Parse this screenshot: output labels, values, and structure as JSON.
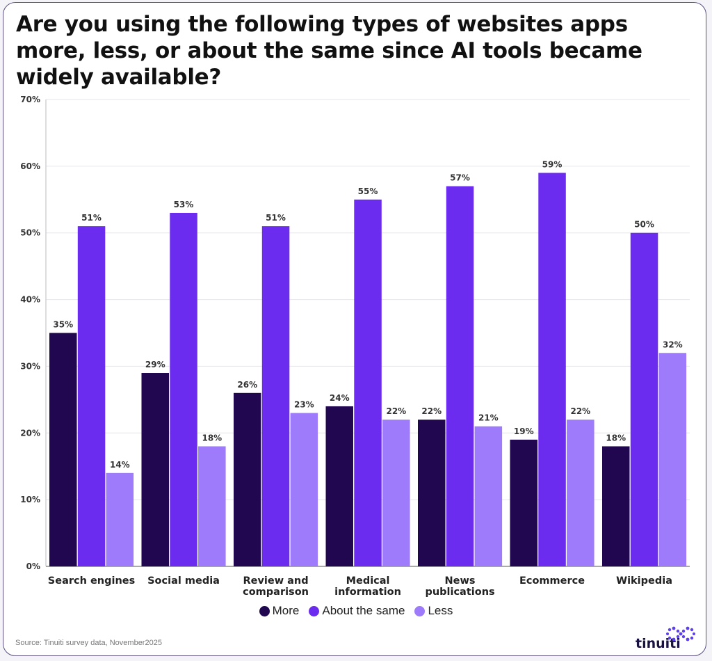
{
  "title": "Are you using the following types of websites apps more, less, or about the same since AI tools became widely available?",
  "source": "Source: Tinuiti survey data, November2025",
  "logo_text": "tinuiti",
  "logo_icon": "dotted-infinity-icon",
  "colors": {
    "More": "#20074f",
    "About the same": "#6c2cf0",
    "Less": "#9d7bfa"
  },
  "legend": [
    {
      "name": "More",
      "color": "#20074f"
    },
    {
      "name": "About the same",
      "color": "#6c2cf0"
    },
    {
      "name": "Less",
      "color": "#9d7bfa"
    }
  ],
  "chart_data": {
    "type": "bar",
    "categories": [
      "Search engines",
      "Social media",
      "Review and comparison",
      "Medical information",
      "News publications",
      "Ecommerce",
      "Wikipedia"
    ],
    "category_lines": [
      [
        "Search engines"
      ],
      [
        "Social media"
      ],
      [
        "Review and",
        "comparison"
      ],
      [
        "Medical",
        "information"
      ],
      [
        "News",
        "publications"
      ],
      [
        "Ecommerce"
      ],
      [
        "Wikipedia"
      ]
    ],
    "series": [
      {
        "name": "More",
        "values": [
          35,
          29,
          26,
          24,
          22,
          19,
          18
        ],
        "labels": [
          "35%",
          "29%",
          "26%",
          "24%",
          "22%",
          "19%",
          "18%"
        ]
      },
      {
        "name": "About the same",
        "values": [
          51,
          53,
          51,
          55,
          57,
          59,
          50
        ],
        "labels": [
          "51%",
          "53%",
          "51%",
          "55%",
          "57%",
          "59%",
          "50%"
        ]
      },
      {
        "name": "Less",
        "values": [
          14,
          18,
          23,
          22,
          21,
          22,
          32
        ],
        "labels": [
          "14%",
          "18%",
          "23%",
          "22%",
          "21%",
          "22%",
          "32%"
        ]
      }
    ],
    "ylim": [
      0,
      70
    ],
    "yticks": [
      0,
      10,
      20,
      30,
      40,
      50,
      60,
      70
    ],
    "ytick_labels": [
      "0%",
      "10%",
      "20%",
      "30%",
      "40%",
      "50%",
      "60%",
      "70%"
    ],
    "grid": true,
    "legend_position": "bottom-center"
  }
}
